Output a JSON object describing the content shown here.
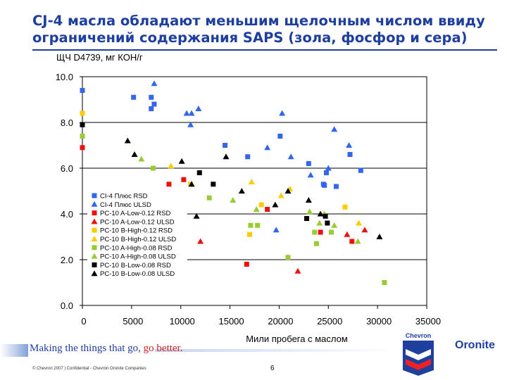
{
  "slide": {
    "title": "CJ-4 масла обладают меньшим щелочным числом ввиду ограничений содержания SAPS (зола, фосфор и сера)",
    "slogan_main": "Making the things that go, ",
    "slogan_go": "go better.",
    "copyright": "© Chevron 2007 | Confidential - Chevron Oronite Companies",
    "page_number": "6",
    "logo_chevron": "Chevron",
    "logo_oronite": "Oronite",
    "colors": {
      "title": "#1f3f9f",
      "brand_blue": "#1f3f9f",
      "brand_red": "#d02020"
    }
  },
  "chart_data": {
    "type": "scatter",
    "title": "",
    "ylabel": "ЩЧ D4739, мг КОН/г",
    "xlabel": "Мили пробега с маслом",
    "xlim": [
      0,
      35000
    ],
    "ylim": [
      0,
      10
    ],
    "xticks": [
      "0",
      "5000",
      "10000",
      "15000",
      "20000",
      "25000",
      "30000",
      "35000"
    ],
    "yticks": [
      "0.0",
      "2.0",
      "4.0",
      "6.0",
      "8.0",
      "10.0"
    ],
    "grid": "horizontal",
    "legend_position": "bottom-left",
    "series": [
      {
        "name": "CI-4 Плюс RSD",
        "color": "#3366ee",
        "marker": "square",
        "points": [
          [
            0,
            9.4
          ],
          [
            5200,
            9.1
          ],
          [
            7000,
            9.1
          ],
          [
            7000,
            8.6
          ],
          [
            7300,
            8.8
          ],
          [
            14500,
            7.0
          ],
          [
            16800,
            6.5
          ],
          [
            20100,
            7.4
          ],
          [
            23000,
            6.2
          ],
          [
            24500,
            5.3
          ],
          [
            24800,
            5.8
          ],
          [
            25800,
            5.2
          ],
          [
            27200,
            6.6
          ],
          [
            28300,
            5.9
          ],
          [
            24600,
            5.25
          ]
        ]
      },
      {
        "name": "CI-4 Плюс ULSD",
        "color": "#3366ee",
        "marker": "triangle",
        "points": [
          [
            7300,
            9.7
          ],
          [
            10600,
            8.4
          ],
          [
            11100,
            8.4
          ],
          [
            11800,
            8.6
          ],
          [
            11000,
            7.9
          ],
          [
            18800,
            6.9
          ],
          [
            20300,
            8.4
          ],
          [
            21200,
            6.5
          ],
          [
            23200,
            5.7
          ],
          [
            25000,
            6.0
          ],
          [
            25600,
            7.7
          ],
          [
            27100,
            7.0
          ],
          [
            19700,
            3.3
          ]
        ]
      },
      {
        "name": "PC-10 A-Low-0.12 RSD",
        "color": "#ee1111",
        "marker": "square",
        "points": [
          [
            0,
            6.9
          ],
          [
            8800,
            5.3
          ],
          [
            10300,
            5.5
          ],
          [
            16700,
            1.8
          ],
          [
            18800,
            4.2
          ],
          [
            24200,
            3.2
          ],
          [
            27400,
            2.8
          ]
        ]
      },
      {
        "name": "PC-10 A-Low-0.12 ULSD",
        "color": "#ee1111",
        "marker": "triangle",
        "points": [
          [
            12000,
            2.8
          ],
          [
            21900,
            1.5
          ],
          [
            26900,
            3.1
          ],
          [
            28700,
            3.3
          ]
        ]
      },
      {
        "name": "PC-10 B-High-0.12 RSD",
        "color": "#ffcc00",
        "marker": "square",
        "points": [
          [
            0,
            8.4
          ],
          [
            11000,
            5.3
          ],
          [
            17000,
            3.1
          ],
          [
            18200,
            4.4
          ],
          [
            26700,
            4.3
          ]
        ]
      },
      {
        "name": "PC-10 B-High-0.12 ULSD",
        "color": "#ffcc00",
        "marker": "triangle",
        "points": [
          [
            9000,
            6.1
          ],
          [
            17200,
            5.4
          ],
          [
            20200,
            4.8
          ],
          [
            21100,
            5.1
          ],
          [
            28100,
            3.6
          ]
        ]
      },
      {
        "name": "PC-10 A-High-0.08 RSD",
        "color": "#99cc33",
        "marker": "square",
        "points": [
          [
            0,
            7.4
          ],
          [
            7200,
            6.0
          ],
          [
            12900,
            4.7
          ],
          [
            17100,
            3.5
          ],
          [
            17800,
            3.5
          ],
          [
            20900,
            2.1
          ],
          [
            23600,
            3.2
          ],
          [
            23800,
            2.7
          ],
          [
            25300,
            3.2
          ],
          [
            30700,
            1.0
          ]
        ]
      },
      {
        "name": "PC-10 A-High-0.08 ULSD",
        "color": "#99cc33",
        "marker": "triangle",
        "points": [
          [
            6000,
            6.4
          ],
          [
            15300,
            4.6
          ],
          [
            17700,
            4.2
          ],
          [
            23100,
            4.1
          ],
          [
            24100,
            3.6
          ],
          [
            24600,
            4.0
          ],
          [
            25600,
            3.5
          ],
          [
            28000,
            2.8
          ]
        ]
      },
      {
        "name": "PC-10 B-Low-0.08 RSD",
        "color": "#000000",
        "marker": "square",
        "points": [
          [
            0,
            7.9
          ],
          [
            11900,
            5.8
          ],
          [
            13300,
            5.3
          ],
          [
            22800,
            3.8
          ],
          [
            24900,
            3.6
          ],
          [
            24700,
            3.9
          ]
        ]
      },
      {
        "name": "PC-10 B-Low-0.08 ULSD",
        "color": "#000000",
        "marker": "triangle",
        "points": [
          [
            4600,
            7.2
          ],
          [
            5300,
            6.6
          ],
          [
            10100,
            6.3
          ],
          [
            11100,
            5.3
          ],
          [
            11600,
            3.9
          ],
          [
            14600,
            6.5
          ],
          [
            16200,
            5.0
          ],
          [
            19600,
            4.4
          ],
          [
            20900,
            5.0
          ],
          [
            23000,
            4.6
          ],
          [
            24200,
            4.0
          ],
          [
            30200,
            3.0
          ]
        ]
      }
    ]
  }
}
